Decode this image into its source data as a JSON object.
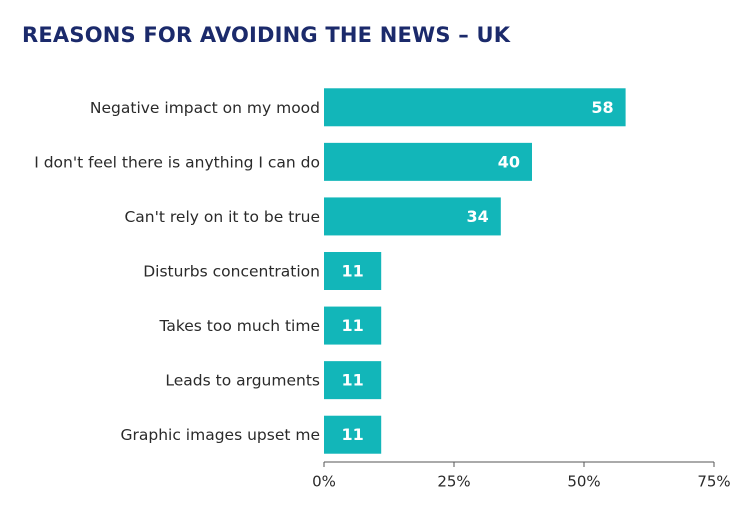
{
  "chart_data": {
    "type": "bar",
    "orientation": "horizontal",
    "title": "REASONS FOR AVOIDING THE NEWS – UK",
    "categories": [
      "Negative impact on my mood",
      "I don't feel there is anything I can do",
      "Can't rely on it to be true",
      "Disturbs concentration",
      "Takes too much time",
      "Leads to arguments",
      "Graphic images upset me"
    ],
    "values": [
      58,
      40,
      34,
      11,
      11,
      11,
      11
    ],
    "color": "#12b6b9",
    "xlim": [
      0,
      75
    ],
    "xticks": [
      {
        "value": 0,
        "label": "0%"
      },
      {
        "value": 25,
        "label": "25%"
      },
      {
        "value": 50,
        "label": "50%"
      },
      {
        "value": 75,
        "label": "75%"
      }
    ]
  }
}
